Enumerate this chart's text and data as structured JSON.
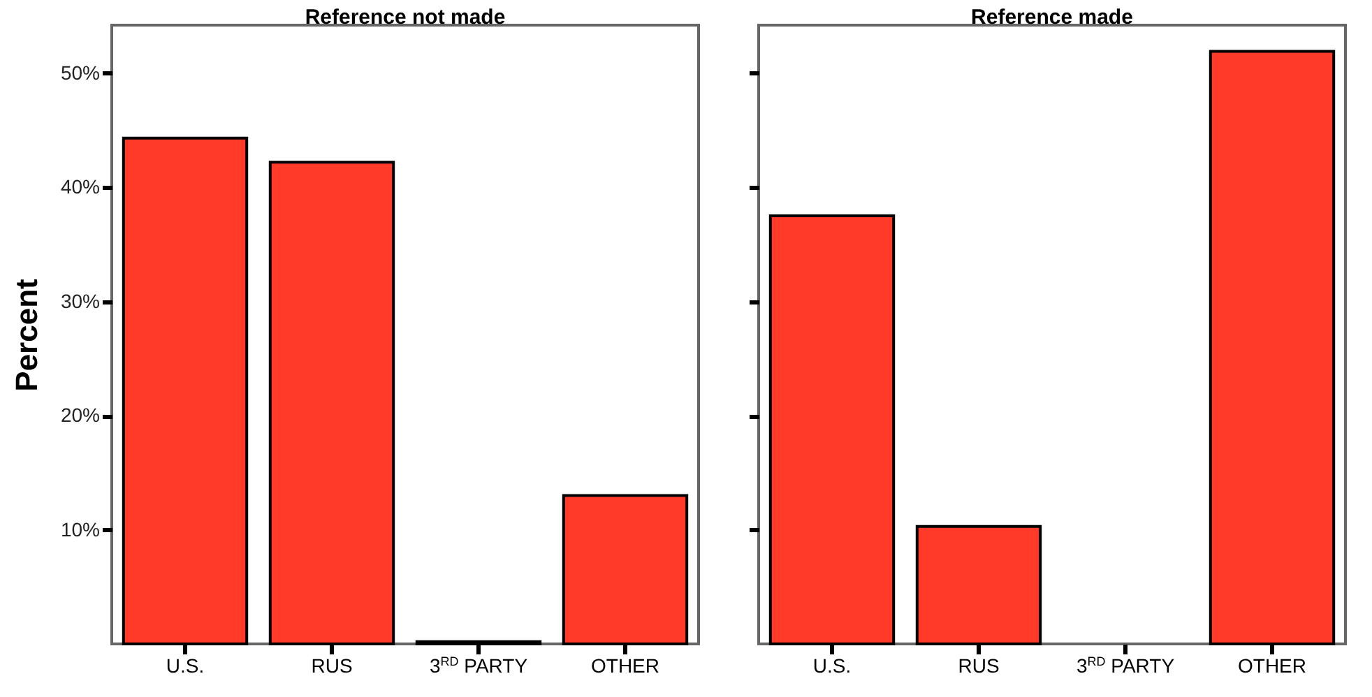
{
  "chart_data": [
    {
      "type": "bar",
      "title": "Reference not made",
      "ylabel": "Percent",
      "categories": [
        "U.S.",
        "RUS",
        "3$^{RD}$ PARTY",
        "OTHER"
      ],
      "values": [
        44.3,
        42.2,
        0.2,
        13.0
      ],
      "color": "#ff3a28",
      "ylim": [
        0,
        54.2
      ],
      "yticks": [
        {
          "value": 10,
          "label": "10%"
        },
        {
          "value": 20,
          "label": "20%"
        },
        {
          "value": 30,
          "label": "30%"
        },
        {
          "value": 40,
          "label": "40%"
        },
        {
          "value": 50,
          "label": "50%"
        }
      ],
      "grid": false
    },
    {
      "type": "bar",
      "title": "Reference made",
      "categories": [
        "U.S.",
        "RUS",
        "3$^{RD}$ PARTY",
        "OTHER"
      ],
      "values": [
        37.5,
        10.3,
        null,
        51.9
      ],
      "color": "#ff3a28",
      "ylim": [
        0,
        54.2
      ],
      "yticks": [
        10,
        20,
        30,
        40,
        50
      ],
      "grid": false,
      "tick_labels": "x"
    }
  ]
}
